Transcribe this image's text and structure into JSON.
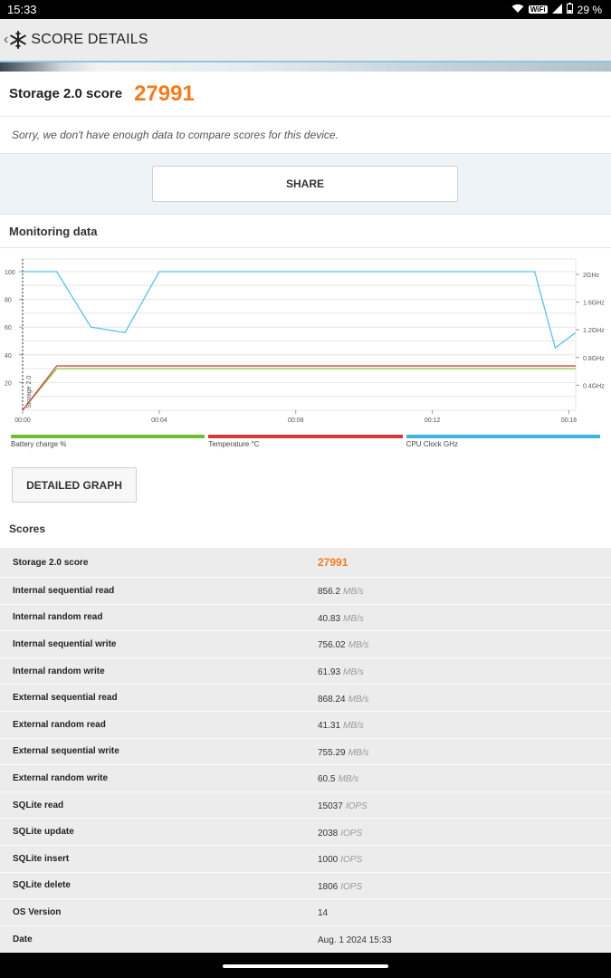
{
  "status_bar": {
    "time": "15:33",
    "wifi_label": "WiFi",
    "battery": "29 %"
  },
  "app_bar": {
    "title": "SCORE DETAILS"
  },
  "header": {
    "score_label": "Storage 2.0 score",
    "score_value": "27991"
  },
  "notice": "Sorry, we don't have enough data to compare scores for this device.",
  "share_label": "SHARE",
  "monitoring": {
    "title": "Monitoring data"
  },
  "chart_data": {
    "type": "line",
    "x_ticks": [
      "00:00",
      "00:04",
      "00:08",
      "00:12",
      "00:16"
    ],
    "y_left_ticks": [
      "100",
      "80",
      "60",
      "40",
      "20"
    ],
    "y_right_ticks": [
      "2GHz",
      "1.6GHz",
      "1.2GHz",
      "0.8GHz",
      "0.4GHz"
    ],
    "marker_label": "Storage 2.0",
    "xlim": [
      0,
      16.2
    ],
    "ylim": [
      0,
      100
    ],
    "series": [
      {
        "name": "Battery charge %",
        "color": "#8bc34a",
        "x": [
          0,
          1,
          16.2
        ],
        "y": [
          0,
          30,
          30
        ]
      },
      {
        "name": "Temperature °C",
        "color": "#c94040",
        "x": [
          0,
          1,
          16.2
        ],
        "y": [
          0,
          32,
          32
        ]
      },
      {
        "name": "CPU Clock GHz",
        "color": "#5bc0eb",
        "x": [
          0,
          1,
          2,
          3,
          4,
          15,
          15.6,
          16.2
        ],
        "y": [
          100,
          100,
          60,
          56,
          100,
          100,
          45,
          56
        ]
      }
    ],
    "legend": [
      {
        "label": "Battery charge %",
        "color": "#6abf2e"
      },
      {
        "label": "Temperature °C",
        "color": "#d03a3a"
      },
      {
        "label": "CPU Clock GHz",
        "color": "#3fb4e5"
      }
    ]
  },
  "detailed_graph_label": "DETAILED GRAPH",
  "scores": {
    "title": "Scores",
    "rows": [
      {
        "name": "Storage 2.0 score",
        "value": "27991",
        "unit": ""
      },
      {
        "name": "Internal sequential read",
        "value": "856.2",
        "unit": "MB/s"
      },
      {
        "name": "Internal random read",
        "value": "40.83",
        "unit": "MB/s"
      },
      {
        "name": "Internal sequential write",
        "value": "756.02",
        "unit": "MB/s"
      },
      {
        "name": "Internal random write",
        "value": "61.93",
        "unit": "MB/s"
      },
      {
        "name": "External sequential read",
        "value": "868.24",
        "unit": "MB/s"
      },
      {
        "name": "External random read",
        "value": "41.31",
        "unit": "MB/s"
      },
      {
        "name": "External sequential write",
        "value": "755.29",
        "unit": "MB/s"
      },
      {
        "name": "External random write",
        "value": "60.5",
        "unit": "MB/s"
      },
      {
        "name": "SQLite read",
        "value": "15037",
        "unit": "IOPS"
      },
      {
        "name": "SQLite update",
        "value": "2038",
        "unit": "IOPS"
      },
      {
        "name": "SQLite insert",
        "value": "1000",
        "unit": "IOPS"
      },
      {
        "name": "SQLite delete",
        "value": "1806",
        "unit": "IOPS"
      },
      {
        "name": "OS Version",
        "value": "14",
        "unit": ""
      },
      {
        "name": "Date",
        "value": "Aug. 1 2024 15:33",
        "unit": ""
      }
    ]
  }
}
